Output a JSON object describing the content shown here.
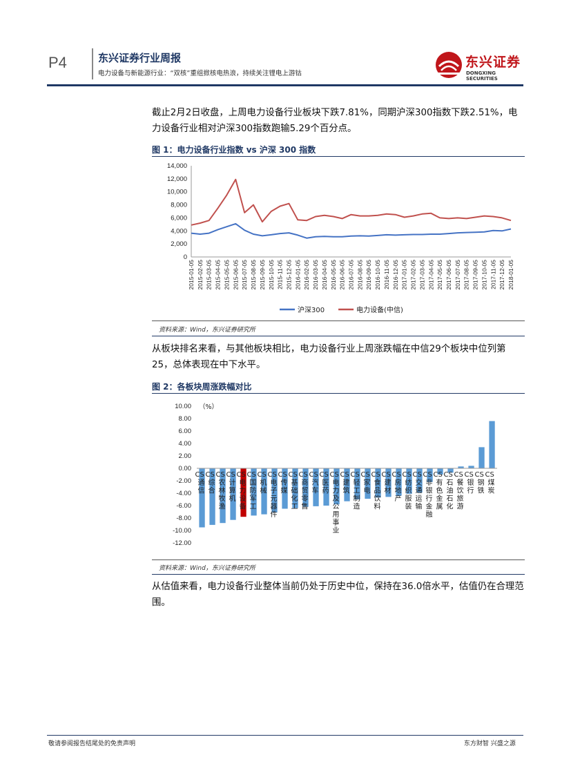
{
  "header": {
    "page_no": "P4",
    "title": "东兴证券行业周报",
    "subtitle": "电力设备与新能源行业：“双核”重组掀核电热浪，持续关注锂电上游钴",
    "logo_cn": "东兴证券",
    "logo_en": "DONGXING SECURITIES",
    "colors": {
      "navy": "#1f3864",
      "logo_red": "#c0161b"
    }
  },
  "paragraphs": {
    "p1": "截止2月2日收盘，上周电力设备行业板块下跌7.81%，同期沪深300指数下跌2.51%，电力设备行业相对沪深300指数跑输5.29个百分点。",
    "p2": "从板块排名来看，与其他板块相比，电力设备行业上周涨跌幅在中信29个板块中位列第25，总体表现在中下水平。",
    "p3": "从估值来看，电力设备行业整体当前仍处于历史中位，保持在36.0倍水平，估值仍在合理范围。"
  },
  "figure1": {
    "title": "图 1：电力设备行业指数 vs 沪深 300 指数",
    "source": "资料来源：Wind，东兴证券研究所"
  },
  "figure2": {
    "title": "图 2：各板块周涨跌幅对比",
    "source": "资料来源：Wind，东兴证券研究所"
  },
  "footer": {
    "left": "敬请参阅报告结尾处的免责声明",
    "right": "东方财智 兴盛之源"
  },
  "chart_data": [
    {
      "type": "line",
      "y_ticks": [
        "14,000",
        "12,000",
        "10,000",
        "8,000",
        "6,000",
        "4,000",
        "2,000",
        "0"
      ],
      "ylim": [
        0,
        14000
      ],
      "x": [
        "2015-01-05",
        "2015-02-05",
        "2015-03-05",
        "2015-04-05",
        "2015-05-05",
        "2015-06-05",
        "2015-07-05",
        "2015-08-05",
        "2015-09-05",
        "2015-10-05",
        "2015-11-05",
        "2015-12-05",
        "2016-01-05",
        "2016-02-05",
        "2016-03-05",
        "2016-04-05",
        "2016-05-05",
        "2016-06-05",
        "2016-07-05",
        "2016-08-05",
        "2016-09-05",
        "2016-10-05",
        "2016-11-05",
        "2016-12-05",
        "2017-01-05",
        "2017-02-05",
        "2017-03-05",
        "2017-04-05",
        "2017-05-05",
        "2017-06-05",
        "2017-07-05",
        "2017-08-05",
        "2017-09-05",
        "2017-10-05",
        "2017-11-05",
        "2017-12-05",
        "2018-01-05"
      ],
      "legend_position": "bottom",
      "series": [
        {
          "name": "沪深300",
          "color": "#4472c4",
          "values": [
            3650,
            3500,
            3650,
            4200,
            4650,
            5100,
            4100,
            3500,
            3250,
            3400,
            3600,
            3700,
            3350,
            2900,
            3100,
            3150,
            3100,
            3100,
            3200,
            3250,
            3200,
            3300,
            3400,
            3350,
            3400,
            3450,
            3450,
            3500,
            3500,
            3600,
            3700,
            3750,
            3800,
            3850,
            4050,
            4000,
            4300
          ]
        },
        {
          "name": "电力设备(中信)",
          "color": "#c0504d",
          "values": [
            4900,
            5200,
            5600,
            7500,
            9500,
            11900,
            6800,
            8000,
            5400,
            7000,
            7800,
            8200,
            5700,
            5600,
            6200,
            6400,
            6200,
            5900,
            6500,
            6300,
            6300,
            6400,
            6600,
            6500,
            6100,
            6300,
            6600,
            6700,
            6000,
            5900,
            6000,
            5900,
            6100,
            6300,
            6200,
            6000,
            5600
          ]
        }
      ]
    },
    {
      "type": "bar",
      "unit_label": "（%）",
      "y_ticks": [
        "10.00",
        "8.00",
        "6.00",
        "4.00",
        "2.00",
        "0.00",
        "-2.00",
        "-4.00",
        "-6.00",
        "-8.00",
        "-10.00",
        "-12.00"
      ],
      "ylim": [
        -12,
        10
      ],
      "highlight_color": "#c00000",
      "bar_color": "#5b9bd5",
      "categories": [
        "CS通信",
        "CS综合",
        "CS农林牧渔",
        "CS计算机",
        "CS电力设备",
        "CS国防军工",
        "CS机械",
        "CS电子元器件",
        "CS传媒",
        "CS基础化工",
        "CS商贸零售",
        "CS汽车",
        "CS医药",
        "CS电力及公用事业",
        "CS建筑",
        "CS轻工制造",
        "CS家电",
        "CS食品饮料",
        "CS建材",
        "CS房地产",
        "CS纺织服装",
        "CS交通运输",
        "CS非银行金融",
        "CS有色金属",
        "CS石油石化",
        "CS餐饮旅游",
        "CS银行",
        "CS钢铁",
        "CS煤炭"
      ],
      "values": [
        -9.5,
        -9.1,
        -8.8,
        -8.3,
        -7.8,
        -7.6,
        -7.4,
        -7.1,
        -6.5,
        -6.4,
        -6.2,
        -6.1,
        -6.0,
        -5.8,
        -5.3,
        -5.0,
        -4.9,
        -4.7,
        -4.6,
        -4.4,
        -4.1,
        -3.9,
        -2.2,
        -1.0,
        -0.7,
        0.3,
        0.4,
        3.4,
        7.6
      ],
      "highlight_index": 4
    }
  ]
}
